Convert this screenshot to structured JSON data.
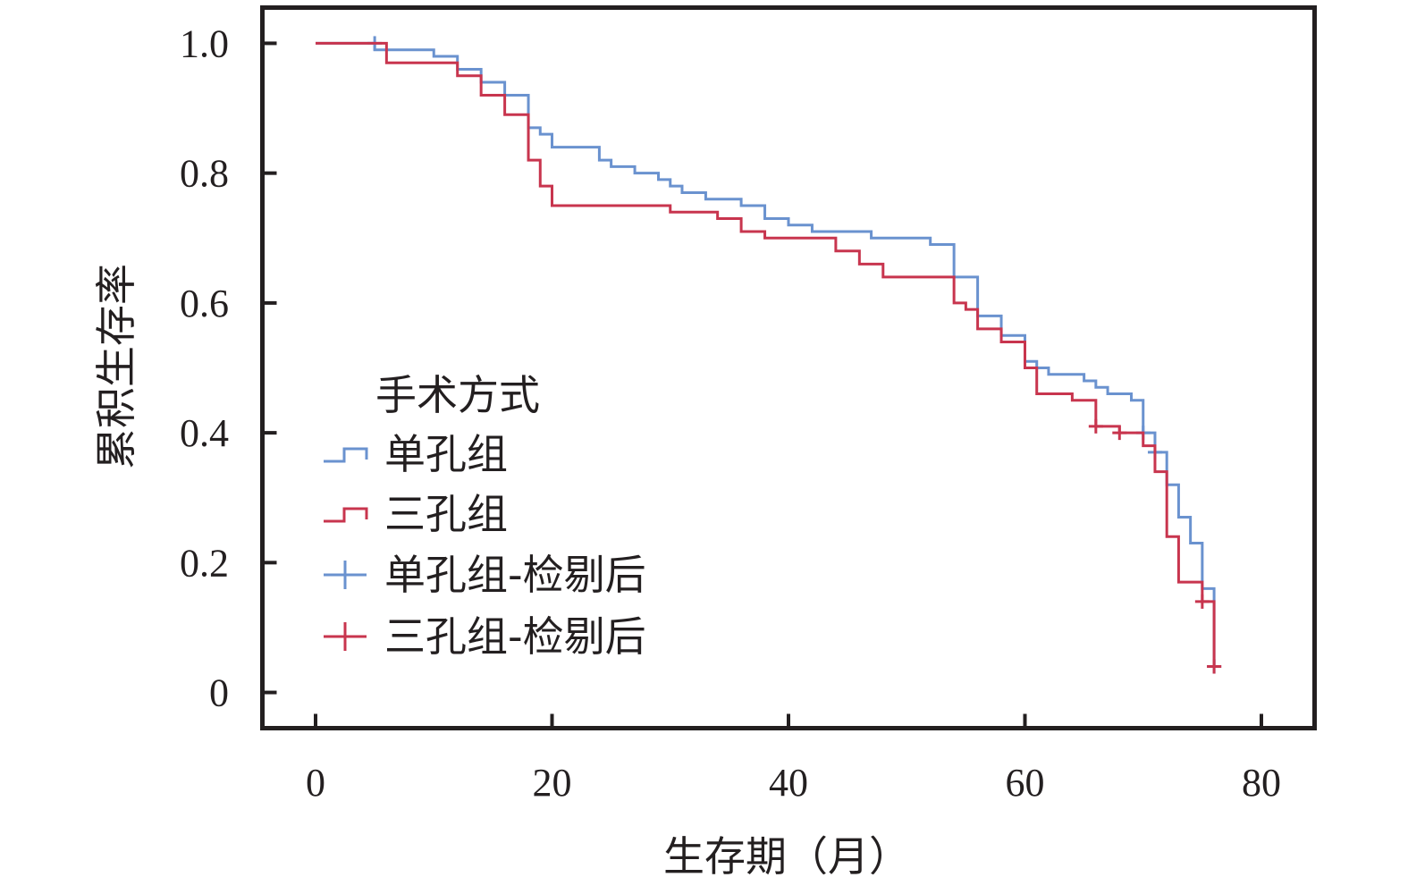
{
  "chart_data": {
    "type": "line",
    "step": true,
    "xlabel": "生存期（月）",
    "ylabel": "累积生存率",
    "xlim": [
      -4.5,
      84.5
    ],
    "ylim": [
      -0.055,
      1.055
    ],
    "xticks": [
      0,
      20,
      40,
      60,
      80
    ],
    "xtick_labels": [
      "0",
      "20",
      "40",
      "60",
      "80"
    ],
    "yticks": [
      0,
      0.2,
      0.4,
      0.6,
      0.8,
      1.0
    ],
    "ytick_labels": [
      "0",
      "0.2",
      "0.4",
      "0.6",
      "0.8",
      "1.0"
    ],
    "grid": false,
    "legend": {
      "title": "手术方式",
      "placement": "middle-left",
      "entries": [
        {
          "label": "单孔组",
          "series": "single",
          "marker": "step"
        },
        {
          "label": "三孔组",
          "series": "triple",
          "marker": "step"
        },
        {
          "label": "单孔组-检剔后",
          "series": "single",
          "marker": "censor"
        },
        {
          "label": "三孔组-检剔后",
          "series": "triple",
          "marker": "censor"
        }
      ]
    },
    "series": [
      {
        "name": "单孔组",
        "key": "single",
        "color": "#6a92cf",
        "x": [
          0,
          5,
          8,
          10,
          12,
          14,
          16,
          18,
          19,
          20,
          24,
          25,
          27,
          29,
          30,
          31,
          33,
          36,
          38,
          40,
          42,
          47,
          52,
          54,
          56,
          58,
          60,
          61,
          62,
          65,
          66,
          67,
          69,
          70,
          71,
          72,
          73,
          74,
          75,
          76
        ],
        "y": [
          1.0,
          0.99,
          0.99,
          0.98,
          0.96,
          0.94,
          0.92,
          0.87,
          0.86,
          0.84,
          0.82,
          0.81,
          0.8,
          0.79,
          0.78,
          0.77,
          0.76,
          0.75,
          0.73,
          0.72,
          0.71,
          0.7,
          0.69,
          0.64,
          0.58,
          0.55,
          0.51,
          0.5,
          0.49,
          0.48,
          0.47,
          0.46,
          0.45,
          0.4,
          0.37,
          0.32,
          0.27,
          0.23,
          0.16,
          0.04
        ],
        "censored": [
          [
            5,
            1.0
          ],
          [
            70,
            0.4
          ],
          [
            71,
            0.37
          ],
          [
            76,
            0.04
          ]
        ]
      },
      {
        "name": "三孔组",
        "key": "triple",
        "color": "#c8354e",
        "x": [
          0,
          5,
          6,
          12,
          14,
          16,
          18,
          19,
          20,
          30,
          34,
          36,
          38,
          44,
          46,
          48,
          54,
          55,
          56,
          58,
          60,
          61,
          64,
          66,
          68,
          70,
          71,
          72,
          73,
          75,
          76
        ],
        "y": [
          1.0,
          1.0,
          0.97,
          0.95,
          0.92,
          0.89,
          0.82,
          0.78,
          0.75,
          0.74,
          0.73,
          0.71,
          0.7,
          0.68,
          0.66,
          0.64,
          0.6,
          0.59,
          0.56,
          0.54,
          0.5,
          0.46,
          0.45,
          0.41,
          0.4,
          0.38,
          0.34,
          0.24,
          0.17,
          0.14,
          0.04
        ],
        "censored": [
          [
            66,
            0.41
          ],
          [
            68,
            0.4
          ],
          [
            75,
            0.14
          ],
          [
            76,
            0.04
          ]
        ]
      }
    ]
  }
}
